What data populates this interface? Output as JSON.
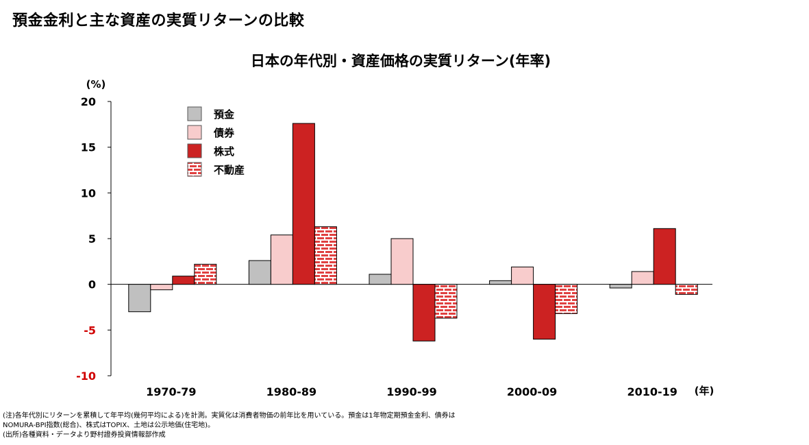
{
  "page_title": "預金金利と主な資産の実質リターンの比較",
  "notes": [
    "(注)各年代別にリターンを累積して年平均(幾何平均による)を計測。実質化は消費者物価の前年比を用いている。預金は1年物定期預金金利、債券は",
    "NOMURA-BPI指数(総合)、株式はTOPIX、土地は公示地価(住宅地)。",
    "(出所)各種資料・データより野村證券投資情報部作成"
  ],
  "chart_data": {
    "type": "bar",
    "title": "日本の年代別・資産価格の実質リターン(年率)",
    "ylabel": "(%)",
    "xunit": "(年)",
    "ylim": [
      -10,
      20
    ],
    "yticks": [
      20,
      15,
      10,
      5,
      0,
      -5,
      -10
    ],
    "negative_tick_color": "#d00000",
    "grid": false,
    "legend_position": "top-left",
    "categories": [
      "1970-79",
      "1980-89",
      "1990-99",
      "2000-09",
      "2010-19"
    ],
    "series": [
      {
        "name": "預金",
        "color": "#c0c0c0",
        "pattern": "solid",
        "values": [
          -3.0,
          2.6,
          1.1,
          0.4,
          -0.4
        ]
      },
      {
        "name": "債券",
        "color": "#f8cccc",
        "pattern": "solid",
        "values": [
          -0.6,
          5.4,
          5.0,
          1.9,
          1.4
        ]
      },
      {
        "name": "株式",
        "color": "#cc2222",
        "pattern": "solid",
        "values": [
          0.9,
          17.6,
          -6.2,
          -6.0,
          6.1
        ]
      },
      {
        "name": "不動産",
        "color": "#d82020",
        "pattern": "brick",
        "values": [
          2.2,
          6.3,
          -3.7,
          -3.2,
          -1.1
        ]
      }
    ]
  }
}
